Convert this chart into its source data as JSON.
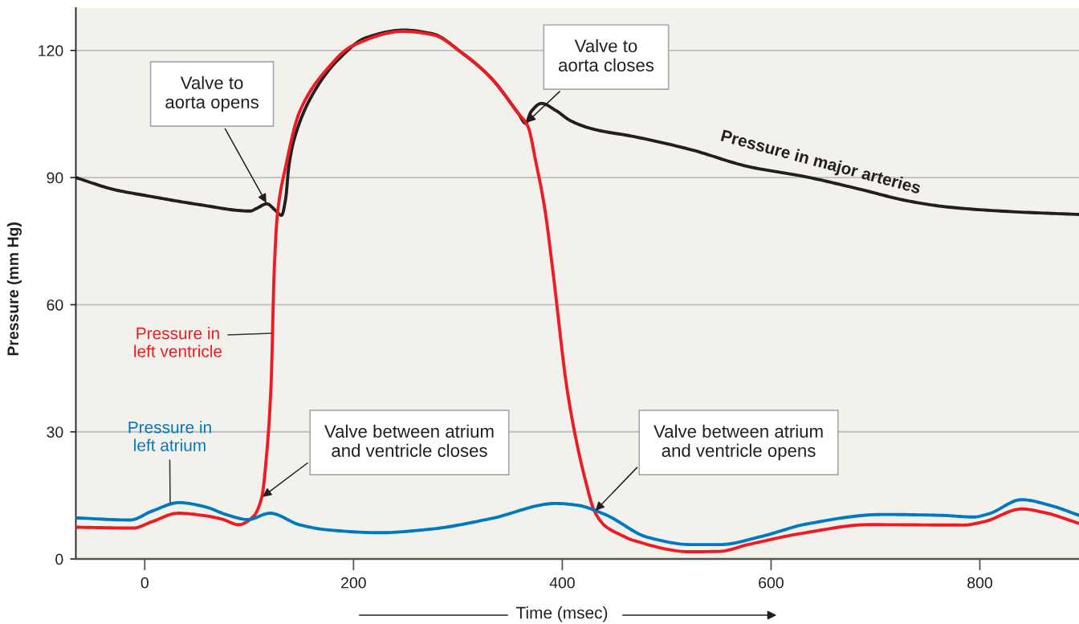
{
  "chart_data": {
    "type": "line",
    "xlabel": "Time (msec)",
    "ylabel": "Pressure (mm Hg)",
    "xlim": [
      -66,
      895
    ],
    "ylim": [
      0,
      130
    ],
    "xticks": [
      0,
      200,
      400,
      600,
      800
    ],
    "yticks": [
      0,
      30,
      60,
      90,
      120
    ],
    "grid": "y",
    "legend": false,
    "line_style": "solid",
    "series": [
      {
        "name": "Pressure in major arteries",
        "color": "#231f20",
        "x": [
          -66,
          -30,
          7,
          50,
          101,
          107,
          117,
          125,
          131,
          135,
          138,
          143,
          161,
          186,
          212,
          248,
          276,
          304,
          331,
          358,
          365,
          370,
          380,
          394,
          408,
          430,
          468,
          523,
          578,
          633,
          681,
          733,
          771,
          835,
          895
        ],
        "values": [
          90,
          87.2,
          85.5,
          83.7,
          82.1,
          82.7,
          83.8,
          82.3,
          81.1,
          85,
          92.6,
          98.9,
          109.7,
          118,
          123,
          124.8,
          123.9,
          119.4,
          113.7,
          105.1,
          102.8,
          105.5,
          107.5,
          105.8,
          103.4,
          101.4,
          99.7,
          96.6,
          92.6,
          90.2,
          87.5,
          84.4,
          83,
          81.9,
          81.3
        ]
      },
      {
        "name": "Pressure in\nleft ventricle",
        "color": "#ed1c24",
        "x": [
          -66,
          -11,
          7,
          32,
          58,
          74,
          90,
          104,
          112,
          117,
          121,
          124,
          127,
          135,
          148,
          174,
          199,
          248,
          276,
          304,
          331,
          358,
          367,
          375,
          383,
          391,
          404,
          411,
          422,
          431,
          441,
          455,
          468,
          523,
          551,
          578,
          633,
          694,
          784,
          804,
          840,
          861,
          895
        ],
        "values": [
          7.5,
          7.3,
          8.8,
          10.8,
          10.2,
          9.4,
          8.1,
          10,
          14.5,
          25.3,
          41,
          67.8,
          81.1,
          92.6,
          105.3,
          115.4,
          121.1,
          124.5,
          123.7,
          119.4,
          113.7,
          105.1,
          102.1,
          93.3,
          83,
          67.9,
          41.1,
          30.9,
          18.7,
          11.2,
          7.8,
          5.8,
          4.4,
          1.7,
          1.8,
          3.4,
          6.2,
          8.1,
          8,
          8.8,
          11.8,
          11,
          8.4
        ]
      },
      {
        "name": "Pressure in\nleft atrium",
        "color": "#0079c1",
        "x": [
          -66,
          -14,
          7,
          33,
          58,
          79,
          99,
          120,
          148,
          174,
          225,
          276,
          331,
          394,
          414,
          441,
          482,
          523,
          551,
          592,
          633,
          707,
          763,
          794,
          809,
          840,
          868,
          895
        ],
        "values": [
          9.7,
          9.2,
          11.3,
          13.3,
          12.3,
          10.4,
          9.3,
          10.8,
          8.1,
          6.9,
          6.2,
          7.1,
          9.5,
          13.1,
          12.7,
          10.5,
          5.1,
          3.4,
          3.4,
          5.4,
          8.2,
          10.5,
          10.3,
          9.9,
          10.7,
          14,
          12.6,
          10.3
        ]
      }
    ],
    "annotations": [
      {
        "text": "Valve to\naorta opens",
        "x": 117,
        "y": 83.8
      },
      {
        "text": "Valve to\naorta closes",
        "x": 365,
        "y": 102.8
      },
      {
        "text": "Valve between atrium\nand ventricle closes",
        "x": 112,
        "y": 14.5
      },
      {
        "text": "Valve between atrium\nand ventricle opens",
        "x": 431,
        "y": 11.2
      }
    ]
  }
}
